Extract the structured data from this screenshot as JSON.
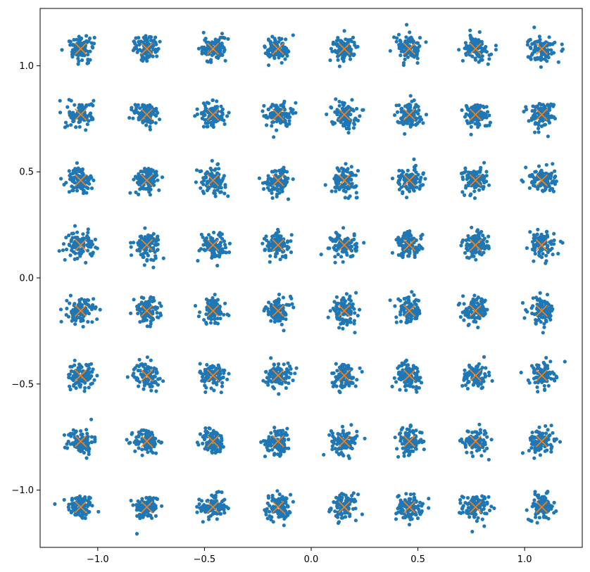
{
  "chart_data": {
    "type": "scatter",
    "title": "",
    "xlabel": "",
    "ylabel": "",
    "xlim": [
      -1.27,
      1.27
    ],
    "ylim": [
      -1.27,
      1.27
    ],
    "grid": false,
    "legend": "none",
    "x_ticks": [
      {
        "value": -1.0,
        "label": "−1.0"
      },
      {
        "value": -0.5,
        "label": "−0.5"
      },
      {
        "value": 0.0,
        "label": "0.0"
      },
      {
        "value": 0.5,
        "label": "0.5"
      },
      {
        "value": 1.0,
        "label": "1.0"
      }
    ],
    "y_ticks": [
      {
        "value": -1.0,
        "label": "−1.0"
      },
      {
        "value": -0.5,
        "label": "−0.5"
      },
      {
        "value": 0.0,
        "label": "0.0"
      },
      {
        "value": 0.5,
        "label": "0.5"
      },
      {
        "value": 1.0,
        "label": "1.0"
      }
    ],
    "constellation_levels": [
      -1.08,
      -0.77,
      -0.46,
      -0.155,
      0.155,
      0.46,
      0.77,
      1.08
    ],
    "series": [
      {
        "kind": "received-samples",
        "marker": "dot",
        "color": "#1f77b4",
        "points_per_cluster": 100,
        "cluster_spread": 0.03
      },
      {
        "kind": "ideal-constellation",
        "marker": "x",
        "color": "#ff7f0e"
      }
    ]
  }
}
